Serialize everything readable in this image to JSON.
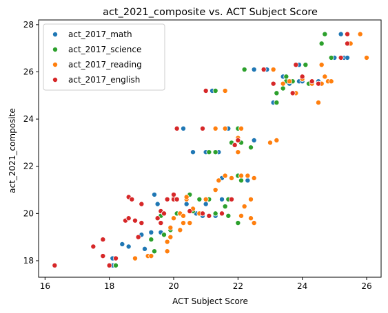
{
  "chart_data": {
    "type": "scatter",
    "title": "act_2021_composite vs. ACT Subject Score",
    "xlabel": "ACT Subject Score",
    "ylabel": "act_2021_composite",
    "xlim": [
      15.8,
      26.45
    ],
    "ylim": [
      17.3,
      28.2
    ],
    "xticks": [
      16,
      18,
      20,
      22,
      24,
      26
    ],
    "yticks": [
      18,
      20,
      22,
      24,
      26,
      28
    ],
    "grid": false,
    "legend_position": "top-left",
    "series": [
      {
        "name": "act_2017_math",
        "color": "#1f77b4",
        "points": [
          [
            18.1,
            17.8
          ],
          [
            18.0,
            17.8
          ],
          [
            18.1,
            18.1
          ],
          [
            18.4,
            18.7
          ],
          [
            18.6,
            18.6
          ],
          [
            19.0,
            19.1
          ],
          [
            19.3,
            19.2
          ],
          [
            19.6,
            19.2
          ],
          [
            19.1,
            18.5
          ],
          [
            20.2,
            20.0
          ],
          [
            19.4,
            20.8
          ],
          [
            19.5,
            20.4
          ],
          [
            20.4,
            20.4
          ],
          [
            20.7,
            20.0
          ],
          [
            20.9,
            19.9
          ],
          [
            21.1,
            19.9
          ],
          [
            21.3,
            19.9
          ],
          [
            21.0,
            20.4
          ],
          [
            21.5,
            20.6
          ],
          [
            21.5,
            21.5
          ],
          [
            22.0,
            21.6
          ],
          [
            22.3,
            21.4
          ],
          [
            21.4,
            22.6
          ],
          [
            21.0,
            22.6
          ],
          [
            20.6,
            22.6
          ],
          [
            22.5,
            23.1
          ],
          [
            21.8,
            23.0
          ],
          [
            22.0,
            23.6
          ],
          [
            21.7,
            23.6
          ],
          [
            20.3,
            23.6
          ],
          [
            21.2,
            25.2
          ],
          [
            22.5,
            26.1
          ],
          [
            22.9,
            26.1
          ],
          [
            23.1,
            25.5
          ],
          [
            23.1,
            24.7
          ],
          [
            23.2,
            24.7
          ],
          [
            23.2,
            25.1
          ],
          [
            23.4,
            25.5
          ],
          [
            23.6,
            25.5
          ],
          [
            23.4,
            25.8
          ],
          [
            23.7,
            25.1
          ],
          [
            23.9,
            26.3
          ],
          [
            23.9,
            25.6
          ],
          [
            24.0,
            25.6
          ],
          [
            24.5,
            25.5
          ],
          [
            24.6,
            26.3
          ],
          [
            24.9,
            26.6
          ],
          [
            25.2,
            27.6
          ],
          [
            25.3,
            26.6
          ],
          [
            25.4,
            27.2
          ],
          [
            25.4,
            26.6
          ],
          [
            25.0,
            26.6
          ],
          [
            24.0,
            25.8
          ],
          [
            24.5,
            25.6
          ]
        ]
      },
      {
        "name": "act_2017_science",
        "color": "#2ca02c",
        "points": [
          [
            18.2,
            17.8
          ],
          [
            19.3,
            18.9
          ],
          [
            19.4,
            18.4
          ],
          [
            19.7,
            19.1
          ],
          [
            19.9,
            19.3
          ],
          [
            19.6,
            19.6
          ],
          [
            19.6,
            19.9
          ],
          [
            20.1,
            20.0
          ],
          [
            20.4,
            20.6
          ],
          [
            20.5,
            20.8
          ],
          [
            20.6,
            20.1
          ],
          [
            20.8,
            20.6
          ],
          [
            21.1,
            20.6
          ],
          [
            21.3,
            20.0
          ],
          [
            21.6,
            20.3
          ],
          [
            21.7,
            19.9
          ],
          [
            22.0,
            19.6
          ],
          [
            21.7,
            20.6
          ],
          [
            21.6,
            21.6
          ],
          [
            22.0,
            21.6
          ],
          [
            22.1,
            21.4
          ],
          [
            21.3,
            22.6
          ],
          [
            21.1,
            22.6
          ],
          [
            21.8,
            23.0
          ],
          [
            22.4,
            22.8
          ],
          [
            22.1,
            23.0
          ],
          [
            22.0,
            23.6
          ],
          [
            21.3,
            25.2
          ],
          [
            22.2,
            26.1
          ],
          [
            23.2,
            25.1
          ],
          [
            23.2,
            24.7
          ],
          [
            23.4,
            25.3
          ],
          [
            23.5,
            25.6
          ],
          [
            23.5,
            25.8
          ],
          [
            23.7,
            25.6
          ],
          [
            24.1,
            26.3
          ],
          [
            24.0,
            25.7
          ],
          [
            24.3,
            25.5
          ],
          [
            24.6,
            27.2
          ],
          [
            24.7,
            27.6
          ],
          [
            24.9,
            26.6
          ],
          [
            25.4,
            27.2
          ],
          [
            24.2,
            25.5
          ],
          [
            23.8,
            25.1
          ]
        ]
      },
      {
        "name": "act_2017_reading",
        "color": "#ff7f0e",
        "points": [
          [
            18.8,
            18.1
          ],
          [
            19.2,
            18.2
          ],
          [
            19.3,
            18.2
          ],
          [
            19.8,
            18.4
          ],
          [
            19.8,
            18.8
          ],
          [
            19.9,
            19.0
          ],
          [
            19.9,
            19.4
          ],
          [
            20.2,
            19.3
          ],
          [
            20.3,
            19.6
          ],
          [
            20.5,
            19.6
          ],
          [
            20.2,
            20.0
          ],
          [
            20.0,
            20.7
          ],
          [
            20.4,
            20.6
          ],
          [
            20.4,
            20.7
          ],
          [
            20.6,
            20.2
          ],
          [
            20.8,
            20.0
          ],
          [
            21.0,
            20.6
          ],
          [
            21.3,
            21.0
          ],
          [
            21.4,
            21.4
          ],
          [
            21.6,
            21.6
          ],
          [
            21.8,
            21.5
          ],
          [
            22.1,
            21.6
          ],
          [
            22.3,
            21.6
          ],
          [
            22.5,
            21.5
          ],
          [
            22.2,
            20.3
          ],
          [
            22.1,
            19.9
          ],
          [
            22.4,
            19.8
          ],
          [
            22.5,
            19.6
          ],
          [
            22.4,
            20.6
          ],
          [
            22.0,
            22.6
          ],
          [
            22.0,
            23.2
          ],
          [
            21.6,
            23.6
          ],
          [
            21.3,
            23.6
          ],
          [
            22.1,
            23.6
          ],
          [
            21.6,
            25.2
          ],
          [
            23.0,
            23.0
          ],
          [
            23.2,
            23.1
          ],
          [
            23.1,
            26.1
          ],
          [
            23.4,
            25.5
          ],
          [
            23.6,
            25.6
          ],
          [
            23.8,
            25.1
          ],
          [
            24.0,
            25.7
          ],
          [
            24.3,
            25.5
          ],
          [
            24.5,
            24.7
          ],
          [
            24.6,
            25.5
          ],
          [
            24.6,
            26.3
          ],
          [
            24.7,
            25.8
          ],
          [
            24.8,
            25.6
          ],
          [
            24.9,
            25.6
          ],
          [
            25.5,
            27.2
          ],
          [
            25.8,
            27.6
          ],
          [
            26.0,
            26.6
          ],
          [
            20.0,
            19.8
          ],
          [
            20.3,
            19.9
          ]
        ]
      },
      {
        "name": "act_2017_english",
        "color": "#d62728",
        "points": [
          [
            16.3,
            17.8
          ],
          [
            17.5,
            18.6
          ],
          [
            17.8,
            18.2
          ],
          [
            17.8,
            18.9
          ],
          [
            18.0,
            17.8
          ],
          [
            18.2,
            18.1
          ],
          [
            18.5,
            19.7
          ],
          [
            18.6,
            20.7
          ],
          [
            18.7,
            20.6
          ],
          [
            18.6,
            19.8
          ],
          [
            18.8,
            19.7
          ],
          [
            18.9,
            19.0
          ],
          [
            19.0,
            20.4
          ],
          [
            19.0,
            19.6
          ],
          [
            19.5,
            19.8
          ],
          [
            19.6,
            19.6
          ],
          [
            19.6,
            20.1
          ],
          [
            19.7,
            20.0
          ],
          [
            19.8,
            20.6
          ],
          [
            20.0,
            20.6
          ],
          [
            20.0,
            20.8
          ],
          [
            20.1,
            20.6
          ],
          [
            20.5,
            20.1
          ],
          [
            20.9,
            20.0
          ],
          [
            21.1,
            19.9
          ],
          [
            21.5,
            20.0
          ],
          [
            21.8,
            20.6
          ],
          [
            21.9,
            22.9
          ],
          [
            22.0,
            23.1
          ],
          [
            20.9,
            23.6
          ],
          [
            20.1,
            23.6
          ],
          [
            21.0,
            25.2
          ],
          [
            22.8,
            26.1
          ],
          [
            23.1,
            25.5
          ],
          [
            23.7,
            25.1
          ],
          [
            23.8,
            26.3
          ],
          [
            24.0,
            25.8
          ],
          [
            24.3,
            25.6
          ],
          [
            25.2,
            26.6
          ],
          [
            25.4,
            27.2
          ],
          [
            25.4,
            27.6
          ],
          [
            24.5,
            25.5
          ]
        ]
      }
    ]
  }
}
